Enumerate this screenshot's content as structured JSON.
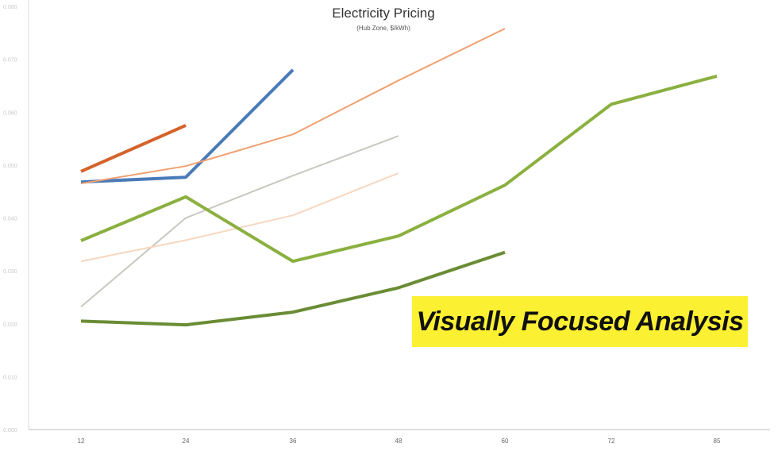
{
  "chart_data": {
    "type": "line",
    "title": "Electricity Pricing",
    "subtitle": "(Hub Zone, $/kWh)",
    "xlabel": "",
    "ylabel": "",
    "x": [
      "12",
      "24",
      "36",
      "48",
      "60",
      "72",
      "85"
    ],
    "y_tick_labels": [
      "0.080",
      "0.070",
      "0.060",
      "0.050",
      "0.040",
      "0.030",
      "0.020",
      "0.010",
      "0.000"
    ],
    "ylim": [
      0,
      0.08
    ],
    "grid": false,
    "legend": "none",
    "series": [
      {
        "color": "#d4622a",
        "width": 4,
        "values": [
          0.0488,
          0.0575,
          null,
          null,
          null,
          null,
          null
        ]
      },
      {
        "color": "#4a7ab8",
        "width": 4,
        "values": [
          0.0468,
          0.0477,
          0.068,
          null,
          null,
          null,
          null
        ]
      },
      {
        "color": "#f0a070",
        "width": 2,
        "values": [
          0.0465,
          0.0498,
          0.0558,
          0.066,
          0.0758,
          null,
          null
        ]
      },
      {
        "color": "#c8c8c0",
        "width": 2,
        "values": [
          0.0232,
          0.04,
          0.048,
          0.0555,
          null,
          null,
          null
        ]
      },
      {
        "color": "#f6d7bf",
        "width": 2,
        "values": [
          0.0318,
          0.0358,
          0.0405,
          0.0485,
          null,
          null,
          null
        ]
      },
      {
        "color": "#8ab040",
        "width": 4,
        "values": [
          0.0357,
          0.044,
          0.0318,
          0.0366,
          0.0462,
          0.0615,
          0.0668
        ]
      },
      {
        "color": "#6a8c34",
        "width": 4,
        "values": [
          0.0205,
          0.0198,
          0.0222,
          0.0268,
          0.0335,
          null,
          null
        ]
      }
    ]
  },
  "annotation": {
    "text": "Visually Focused Analysis",
    "background": "#fcf033"
  }
}
